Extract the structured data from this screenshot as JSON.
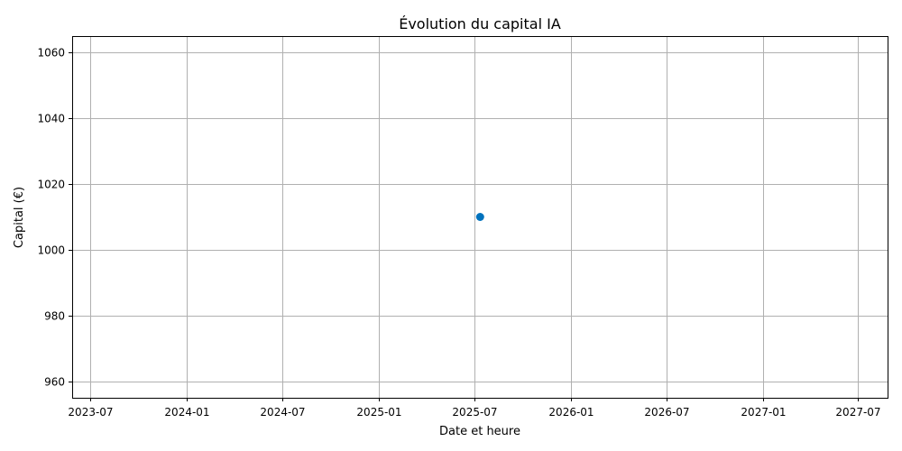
{
  "chart_data": {
    "type": "scatter",
    "title": "Évolution du capital IA",
    "xlabel": "Date et heure",
    "ylabel": "Capital (€)",
    "x_ticks": [
      "2023-07",
      "2024-01",
      "2024-07",
      "2025-01",
      "2025-07",
      "2026-01",
      "2026-07",
      "2027-01",
      "2027-07"
    ],
    "y_ticks": [
      960,
      980,
      1000,
      1020,
      1040,
      1060
    ],
    "xlim": [
      "2023-05-28",
      "2027-08-26"
    ],
    "ylim": [
      955,
      1065
    ],
    "grid": true,
    "series": [
      {
        "x": [
          "2025-07-12"
        ],
        "y": [
          1010
        ]
      }
    ],
    "colors": {
      "marker": "#0072bd",
      "grid": "#b0b0b0"
    }
  }
}
